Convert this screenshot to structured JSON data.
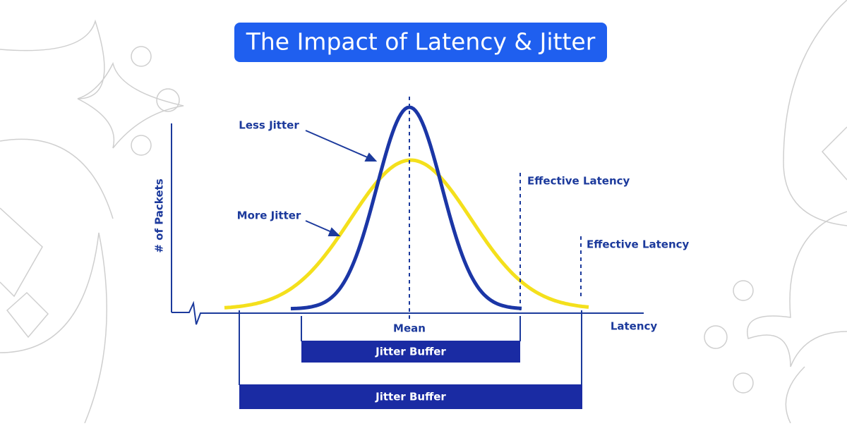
{
  "title": "The Impact of Latency & Jitter",
  "diagram": {
    "y_axis_label": "# of Packets",
    "x_axis_label": "Latency",
    "curves": [
      {
        "label": "Less Jitter"
      },
      {
        "label": "More Jitter"
      }
    ],
    "mean_label": "Mean",
    "effective_latency_labels": [
      "Effective Latency",
      "Effective Latency"
    ],
    "buffers": [
      "Jitter Buffer",
      "Jitter Buffer"
    ]
  }
}
